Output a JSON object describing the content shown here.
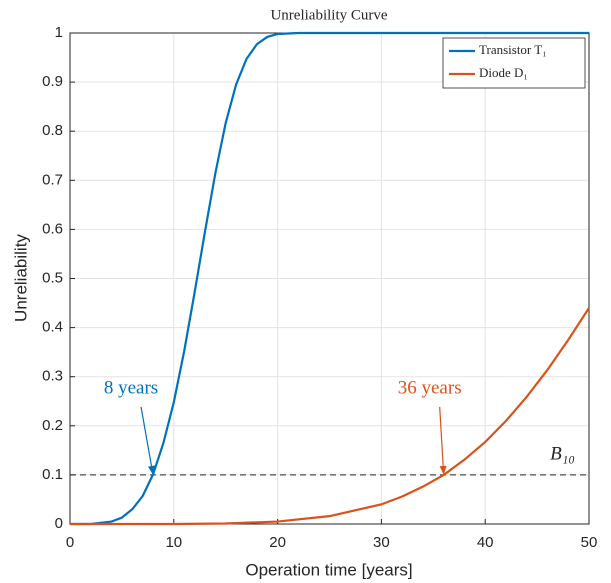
{
  "chart_data": {
    "type": "line",
    "title": "Unreliability Curve",
    "xlabel": "Operation time [years]",
    "ylabel": "Unreliability",
    "xlim": [
      0,
      50
    ],
    "ylim": [
      0,
      1
    ],
    "xticks": [
      0,
      10,
      20,
      30,
      40,
      50
    ],
    "yticks": [
      0,
      0.1,
      0.2,
      0.3,
      0.4,
      0.5,
      0.6,
      0.7,
      0.8,
      0.9,
      1
    ],
    "grid": true,
    "legend": "upper right",
    "series": [
      {
        "name": "Transistor T₁",
        "color": "#0072BD",
        "x": [
          0,
          2,
          4,
          5,
          6,
          7,
          8,
          9,
          10,
          11,
          12,
          13,
          14,
          15,
          16,
          17,
          18,
          19,
          20,
          22,
          30,
          40,
          50
        ],
        "values": [
          0,
          0,
          0.005,
          0.013,
          0.03,
          0.057,
          0.101,
          0.165,
          0.248,
          0.352,
          0.471,
          0.595,
          0.714,
          0.817,
          0.895,
          0.947,
          0.977,
          0.992,
          0.998,
          1,
          1,
          1,
          1
        ]
      },
      {
        "name": "Diode D₁",
        "color": "#D95319",
        "x": [
          0,
          10,
          15,
          20,
          25,
          30,
          32,
          34,
          36,
          38,
          40,
          42,
          44,
          46,
          48,
          50
        ],
        "values": [
          0,
          0,
          0.001,
          0.005,
          0.016,
          0.04,
          0.056,
          0.076,
          0.1,
          0.131,
          0.167,
          0.21,
          0.259,
          0.314,
          0.375,
          0.44
        ]
      }
    ],
    "reference_line": {
      "value": 0.1,
      "label": "B₁₀"
    },
    "annotations": [
      {
        "text": "8 years",
        "xy": [
          8,
          0.1
        ]
      },
      {
        "text": "36 years",
        "xy": [
          36,
          0.1
        ]
      }
    ]
  }
}
